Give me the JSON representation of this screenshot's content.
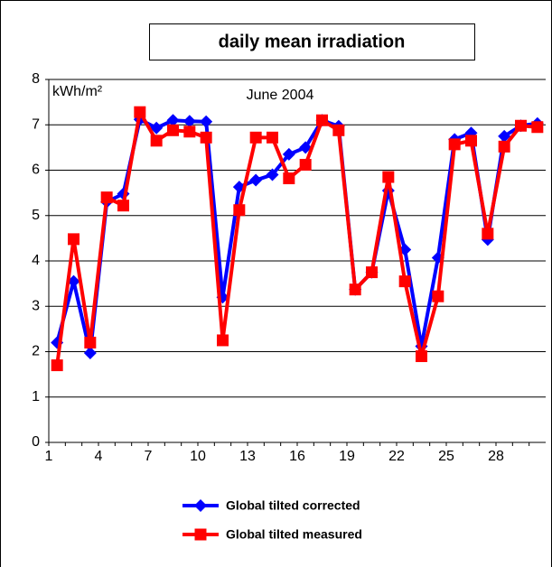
{
  "chart_data": {
    "type": "line",
    "title": "daily mean irradiation",
    "y_label": "kWh/m²",
    "annotation": "June 2004",
    "categories": [
      1,
      null,
      null,
      4,
      null,
      null,
      7,
      null,
      null,
      10,
      null,
      null,
      13,
      null,
      null,
      16,
      null,
      null,
      19,
      null,
      null,
      22,
      null,
      null,
      25,
      null,
      null,
      28,
      null,
      null
    ],
    "series": [
      {
        "name": "Global tilted corrected",
        "color": "#0000ff",
        "marker": "diamond",
        "values": [
          2.2,
          3.55,
          1.97,
          5.3,
          5.48,
          7.12,
          6.93,
          7.1,
          7.08,
          7.07,
          3.2,
          5.63,
          5.78,
          5.9,
          6.35,
          6.5,
          7.1,
          6.97,
          3.37,
          3.75,
          5.55,
          4.25,
          2.12,
          4.07,
          6.68,
          6.82,
          4.47,
          6.75,
          6.98,
          7.03
        ]
      },
      {
        "name": "Global  tilted measured",
        "color": "#ff0000",
        "marker": "square",
        "values": [
          1.7,
          4.48,
          2.2,
          5.4,
          5.22,
          7.28,
          6.65,
          6.88,
          6.85,
          6.72,
          2.25,
          5.12,
          6.72,
          6.72,
          5.82,
          6.12,
          7.1,
          6.88,
          3.37,
          3.75,
          5.85,
          3.55,
          1.9,
          3.22,
          6.57,
          6.65,
          4.6,
          6.52,
          6.98,
          6.95
        ]
      }
    ],
    "ylim": [
      0,
      8
    ],
    "yticks": [
      0,
      1,
      2,
      3,
      4,
      5,
      6,
      7,
      8
    ],
    "grid": true,
    "legend": "bottom"
  }
}
